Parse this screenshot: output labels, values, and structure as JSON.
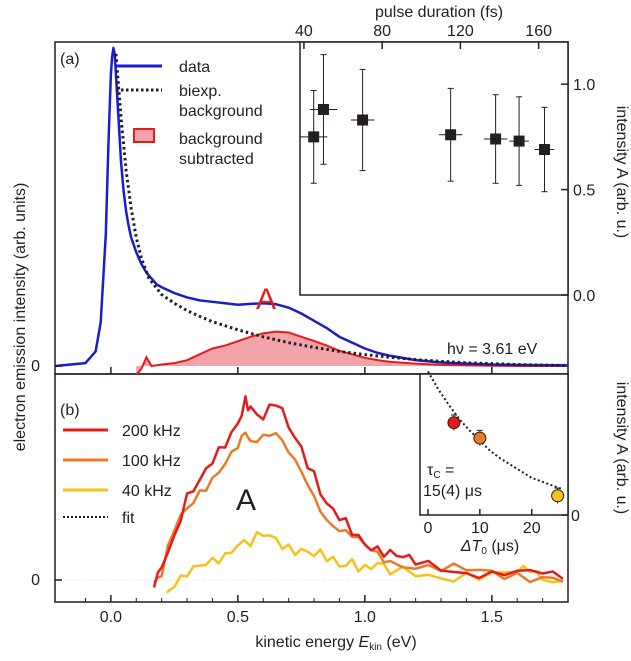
{
  "chart_data": [
    {
      "panel": "(a)",
      "type": "line",
      "xlabel_main": "kinetic energy ",
      "xlabel_sym": "E",
      "xlabel_sub": "kin",
      "xlabel_unit": " (eV)",
      "xlim": [
        -0.22,
        1.8
      ],
      "xticks": [
        "0.0",
        "0.5",
        "1.0",
        "1.5"
      ],
      "ylabel": "electron emission intensity (arb. units)",
      "ylim": [
        -0.02,
        1.12
      ],
      "yticks": [
        "0"
      ],
      "annotation_peak": "A",
      "annotation_photon": "hν = 3.61 eV",
      "legend": {
        "data": "data",
        "bg_line1": "biexp.",
        "bg_line2": "background",
        "sub_line1": "background",
        "sub_line2": "subtracted"
      },
      "colors": {
        "data": "#1c1ccf",
        "background": "#231f20",
        "subtracted_line": "#e41b1b",
        "subtracted_fill": "#f2a3aa",
        "peak_label": "#e41b1b"
      },
      "series": [
        {
          "name": "data",
          "x": [
            -0.22,
            -0.1,
            -0.06,
            -0.04,
            -0.02,
            -0.01,
            0,
            0.005,
            0.01,
            0.015,
            0.02,
            0.03,
            0.04,
            0.05,
            0.06,
            0.07,
            0.08,
            0.1,
            0.12,
            0.14,
            0.16,
            0.18,
            0.2,
            0.25,
            0.3,
            0.35,
            0.4,
            0.45,
            0.5,
            0.55,
            0.6,
            0.65,
            0.7,
            0.75,
            0.8,
            0.85,
            0.9,
            0.95,
            1.0,
            1.05,
            1.1,
            1.2,
            1.3,
            1.4,
            1.5,
            1.6,
            1.7,
            1.8
          ],
          "y": [
            0.0,
            0.01,
            0.05,
            0.15,
            0.45,
            0.75,
            1.0,
            1.06,
            1.09,
            1.07,
            1.0,
            0.85,
            0.7,
            0.6,
            0.53,
            0.48,
            0.44,
            0.39,
            0.35,
            0.32,
            0.3,
            0.28,
            0.27,
            0.25,
            0.235,
            0.225,
            0.22,
            0.215,
            0.21,
            0.213,
            0.215,
            0.212,
            0.2,
            0.18,
            0.155,
            0.13,
            0.1,
            0.08,
            0.06,
            0.045,
            0.035,
            0.02,
            0.012,
            0.008,
            0.005,
            0.004,
            0.003,
            0.002
          ]
        },
        {
          "name": "biexp. background",
          "x": [
            0.02,
            0.04,
            0.06,
            0.08,
            0.1,
            0.12,
            0.15,
            0.2,
            0.25,
            0.3,
            0.35,
            0.4,
            0.5,
            0.6,
            0.7,
            0.8,
            0.9,
            1.0,
            1.1,
            1.2,
            1.3,
            1.4,
            1.5,
            1.6,
            1.7,
            1.8
          ],
          "y": [
            1.07,
            0.85,
            0.67,
            0.54,
            0.44,
            0.37,
            0.3,
            0.245,
            0.215,
            0.19,
            0.17,
            0.152,
            0.124,
            0.1,
            0.08,
            0.064,
            0.05,
            0.039,
            0.03,
            0.022,
            0.016,
            0.011,
            0.008,
            0.005,
            0.003,
            0.002
          ]
        },
        {
          "name": "background subtracted",
          "x": [
            0.1,
            0.12,
            0.14,
            0.16,
            0.2,
            0.25,
            0.3,
            0.35,
            0.4,
            0.45,
            0.5,
            0.55,
            0.6,
            0.65,
            0.7,
            0.75,
            0.8,
            0.85,
            0.9,
            0.95,
            1.0,
            1.05,
            1.1,
            1.2,
            1.3,
            1.4,
            1.5,
            1.6,
            1.7,
            1.8
          ],
          "y": [
            -0.03,
            -0.01,
            0.03,
            0.0,
            0.005,
            0.01,
            0.02,
            0.04,
            0.06,
            0.07,
            0.085,
            0.1,
            0.112,
            0.118,
            0.115,
            0.1,
            0.086,
            0.07,
            0.052,
            0.04,
            0.028,
            0.02,
            0.014,
            0.008,
            0.004,
            0.002,
            0.001,
            0.0,
            0.0,
            0.0
          ]
        }
      ]
    },
    {
      "panel": "(a) inset",
      "type": "scatter",
      "xlabel": "pulse duration (fs)",
      "xlim": [
        38,
        175
      ],
      "xticks": [
        "40",
        "80",
        "120",
        "160"
      ],
      "ylabel": "intensity A (arb. u.)",
      "ylim": [
        0,
        1.2
      ],
      "yticks": [
        "0.0",
        "0.5",
        "1.0"
      ],
      "series": [
        {
          "name": "",
          "points": [
            {
              "x": 45,
              "y": 0.75,
              "xerr": 7,
              "yerr": 0.22
            },
            {
              "x": 50,
              "y": 0.88,
              "xerr": 7,
              "yerr": 0.26
            },
            {
              "x": 70,
              "y": 0.83,
              "xerr": 6,
              "yerr": 0.24
            },
            {
              "x": 115,
              "y": 0.76,
              "xerr": 6,
              "yerr": 0.22
            },
            {
              "x": 138,
              "y": 0.74,
              "xerr": 6,
              "yerr": 0.21
            },
            {
              "x": 150,
              "y": 0.73,
              "xerr": 5,
              "yerr": 0.21
            },
            {
              "x": 163,
              "y": 0.69,
              "xerr": 5,
              "yerr": 0.2
            }
          ]
        }
      ]
    },
    {
      "panel": "(b)",
      "type": "line",
      "xlim": [
        -0.22,
        1.8
      ],
      "ylim": [
        -0.06,
        1.0
      ],
      "yticks": [
        "0"
      ],
      "annotation_peak": "A",
      "legend": {
        "r200": "200 kHz",
        "r100": "100 kHz",
        "r40": "40 kHz",
        "fit": "fit"
      },
      "colors": {
        "r200": "#e41b1b",
        "r100": "#ea7b26",
        "r40": "#f6c21a",
        "fit": "#231f20",
        "peak_label": "#231f20"
      },
      "series": [
        {
          "name": "200 kHz",
          "x": [
            0.17,
            0.2,
            0.25,
            0.3,
            0.35,
            0.4,
            0.45,
            0.5,
            0.53,
            0.55,
            0.6,
            0.65,
            0.7,
            0.75,
            0.8,
            0.85,
            0.9,
            0.95,
            1.0,
            1.05,
            1.1,
            1.15,
            1.2,
            1.3,
            1.4,
            1.5,
            1.6,
            1.7,
            1.78
          ],
          "y": [
            -0.04,
            0.05,
            0.22,
            0.46,
            0.55,
            0.64,
            0.71,
            0.82,
            0.96,
            0.92,
            0.87,
            0.95,
            0.82,
            0.7,
            0.56,
            0.4,
            0.33,
            0.26,
            0.2,
            0.17,
            0.14,
            0.11,
            0.09,
            0.07,
            0.05,
            0.04,
            0.03,
            0.02,
            0.01
          ]
        },
        {
          "name": "100 kHz",
          "x": [
            0.17,
            0.2,
            0.25,
            0.3,
            0.35,
            0.4,
            0.45,
            0.5,
            0.53,
            0.55,
            0.6,
            0.65,
            0.7,
            0.75,
            0.8,
            0.85,
            0.9,
            0.95,
            1.0,
            1.05,
            1.1,
            1.2,
            1.3,
            1.4,
            1.5,
            1.6,
            1.7,
            1.78
          ],
          "y": [
            -0.03,
            0.02,
            0.28,
            0.4,
            0.48,
            0.53,
            0.6,
            0.7,
            0.8,
            0.76,
            0.78,
            0.77,
            0.66,
            0.57,
            0.46,
            0.34,
            0.27,
            0.22,
            0.17,
            0.14,
            0.11,
            0.08,
            0.06,
            0.045,
            0.03,
            0.025,
            0.02,
            0.01
          ]
        },
        {
          "name": "40 kHz",
          "x": [
            0.22,
            0.25,
            0.3,
            0.35,
            0.4,
            0.45,
            0.5,
            0.55,
            0.6,
            0.65,
            0.7,
            0.75,
            0.8,
            0.85,
            0.9,
            0.95,
            1.0,
            1.05,
            1.1,
            1.2,
            1.3,
            1.4,
            1.5,
            1.6,
            1.65,
            1.7,
            1.78
          ],
          "y": [
            -0.05,
            -0.02,
            0.02,
            0.06,
            0.1,
            0.14,
            0.2,
            0.2,
            0.24,
            0.21,
            0.17,
            0.16,
            0.14,
            0.12,
            0.08,
            0.1,
            0.06,
            0.08,
            0.04,
            0.04,
            0.02,
            0.03,
            0.02,
            0.03,
            0.05,
            0.02,
            0.01
          ]
        }
      ]
    },
    {
      "panel": "(b) inset",
      "type": "scatter",
      "xlabel_sym": "ΔT",
      "xlabel_sub": "0",
      "xlabel_unit": " (μs)",
      "xlim": [
        0,
        27
      ],
      "xticks": [
        "0",
        "10",
        "20"
      ],
      "ylabel": "intensity A (arb. u.)",
      "ylim": [
        0,
        1.1
      ],
      "yticks": [
        "0"
      ],
      "annotation_l1": "τ",
      "annotation_l1_sub": "C",
      "annotation_l1_rest": " =",
      "annotation_l2": "15(4) μs",
      "series": [
        {
          "name": "200 kHz",
          "x": 5,
          "y": 0.72,
          "yerr": 0.06,
          "color": "#e41b1b"
        },
        {
          "name": "100 kHz",
          "x": 10,
          "y": 0.6,
          "yerr": 0.06,
          "color": "#ea7b26"
        },
        {
          "name": "40 kHz",
          "x": 25,
          "y": 0.15,
          "yerr": 0.06,
          "color": "#f6c21a"
        },
        {
          "name": "fit",
          "x": [
            0,
            2,
            4,
            6,
            8,
            10,
            12,
            14,
            16,
            18,
            20,
            22,
            24,
            26
          ],
          "y": [
            1.12,
            0.98,
            0.86,
            0.75,
            0.66,
            0.58,
            0.5,
            0.44,
            0.39,
            0.34,
            0.29,
            0.26,
            0.23,
            0.2
          ]
        }
      ]
    }
  ]
}
